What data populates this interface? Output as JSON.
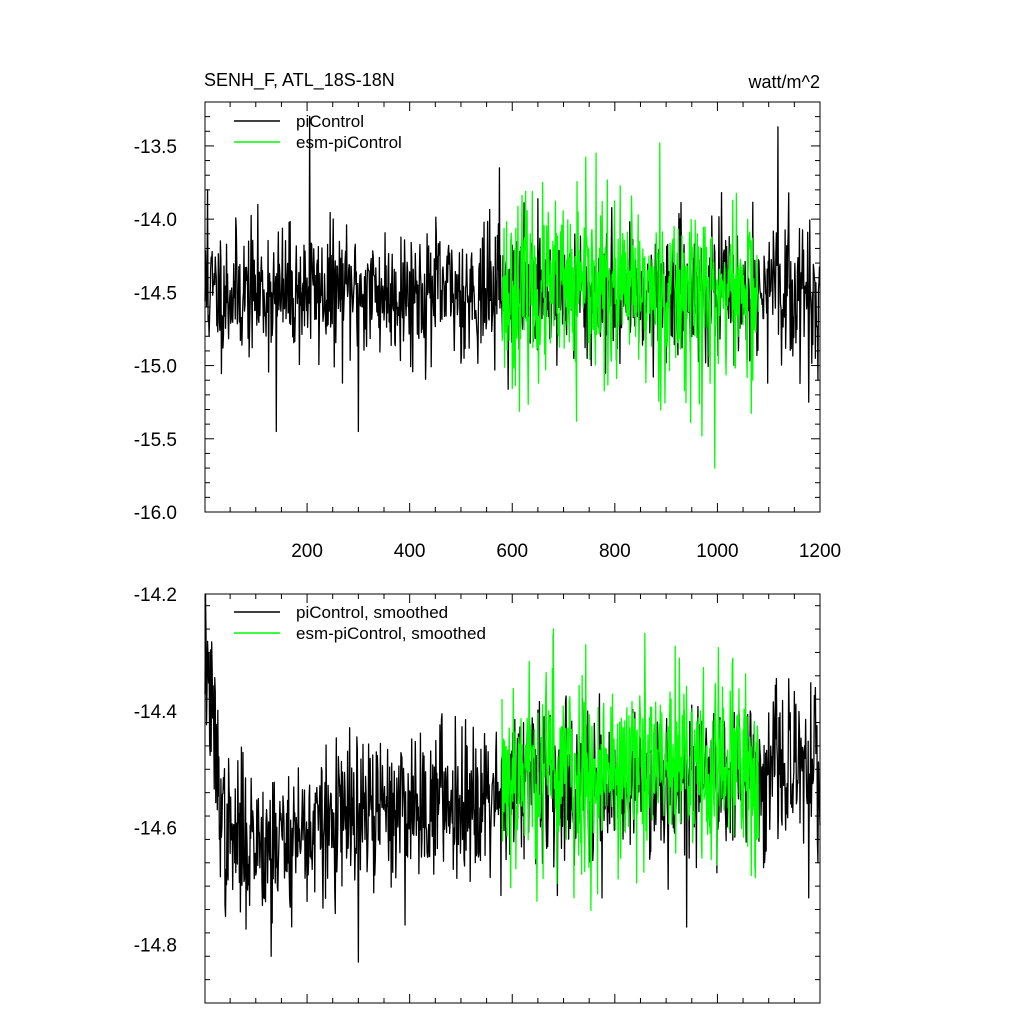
{
  "colors": {
    "piControl": "#000000",
    "esm-piControl": "#00ff00"
  },
  "chart_data": [
    {
      "type": "line",
      "title": "SENH_F, ATL_18S-18N",
      "units": "watt/m^2",
      "xlim": [
        1,
        1200
      ],
      "ylim": [
        -16.0,
        -13.2
      ],
      "x_ticks": [
        200,
        400,
        600,
        800,
        1000,
        1200
      ],
      "x_tick_labels": [
        "200",
        "400",
        "600",
        "800",
        "1000",
        "1200"
      ],
      "y_ticks": [
        -16.0,
        -15.5,
        -15.0,
        -14.5,
        -14.0,
        -13.5
      ],
      "y_tick_labels": [
        "-16.0",
        "-15.5",
        "-15.0",
        "-14.5",
        "-14.0",
        "-13.5"
      ],
      "legend": {
        "position": "top-left",
        "entries": [
          "piControl",
          "esm-piControl"
        ]
      },
      "series": [
        {
          "name": "piControl",
          "color": "#000000",
          "x_start": 1,
          "x_end": 1200,
          "n_points": 1200,
          "mean": -14.5,
          "std": 0.22,
          "seed": 11,
          "features": [
            [
              6,
              -13.8
            ],
            [
              140,
              -15.45
            ],
            [
              205,
              -13.3
            ],
            [
              300,
              -15.45
            ],
            [
              575,
              -13.65
            ],
            [
              1118,
              -13.37
            ],
            [
              1178,
              -15.25
            ],
            [
              1196,
              -15.1
            ]
          ]
        },
        {
          "name": "esm-piControl",
          "color": "#00ff00",
          "x_start": 580,
          "x_end": 1080,
          "n_points": 500,
          "mean": -14.5,
          "std": 0.3,
          "seed": 23,
          "features": [
            [
              763,
              -13.55
            ],
            [
              888,
              -13.48
            ],
            [
              995,
              -15.7
            ],
            [
              970,
              -15.48
            ],
            [
              725,
              -15.38
            ]
          ]
        }
      ]
    },
    {
      "type": "line",
      "title": "",
      "xlim": [
        1,
        1200
      ],
      "ylim": [
        -14.9,
        -14.2
      ],
      "x_ticks": [
        200,
        400,
        600,
        800,
        1000,
        1200
      ],
      "y_ticks": [
        -14.8,
        -14.6,
        -14.4,
        -14.2
      ],
      "y_tick_labels": [
        "-14.8",
        "-14.6",
        "-14.4",
        "-14.2"
      ],
      "legend": {
        "position": "top-left",
        "entries": [
          "piControl, smoothed",
          "esm-piControl, smoothed"
        ]
      },
      "series": [
        {
          "name": "piControl, smoothed",
          "color": "#000000",
          "x_start": 1,
          "x_end": 1200,
          "n_points": 1200,
          "mean": -14.53,
          "std": 0.065,
          "seed": 37,
          "trend": [
            [
              1,
              -14.3
            ],
            [
              40,
              -14.62
            ],
            [
              150,
              -14.62
            ],
            [
              300,
              -14.58
            ],
            [
              600,
              -14.53
            ],
            [
              1200,
              -14.5
            ]
          ],
          "features": [
            [
              3,
              -14.27
            ],
            [
              130,
              -14.82
            ],
            [
              300,
              -14.83
            ],
            [
              680,
              -14.27
            ],
            [
              775,
              -14.72
            ],
            [
              940,
              -14.77
            ],
            [
              1178,
              -14.72
            ]
          ]
        },
        {
          "name": "esm-piControl, smoothed",
          "color": "#00ff00",
          "x_start": 580,
          "x_end": 1080,
          "n_points": 500,
          "mean": -14.5,
          "std": 0.085,
          "seed": 53,
          "features": [
            [
              680,
              -14.26
            ],
            [
              720,
              -14.72
            ],
            [
              1030,
              -14.31
            ]
          ]
        }
      ]
    }
  ],
  "panel1": {
    "title": "SENH_F, ATL_18S-18N",
    "units": "watt/m^2",
    "legend": [
      "piControl",
      "esm-piControl"
    ]
  },
  "panel2": {
    "legend": [
      "piControl, smoothed",
      "esm-piControl, smoothed"
    ]
  }
}
